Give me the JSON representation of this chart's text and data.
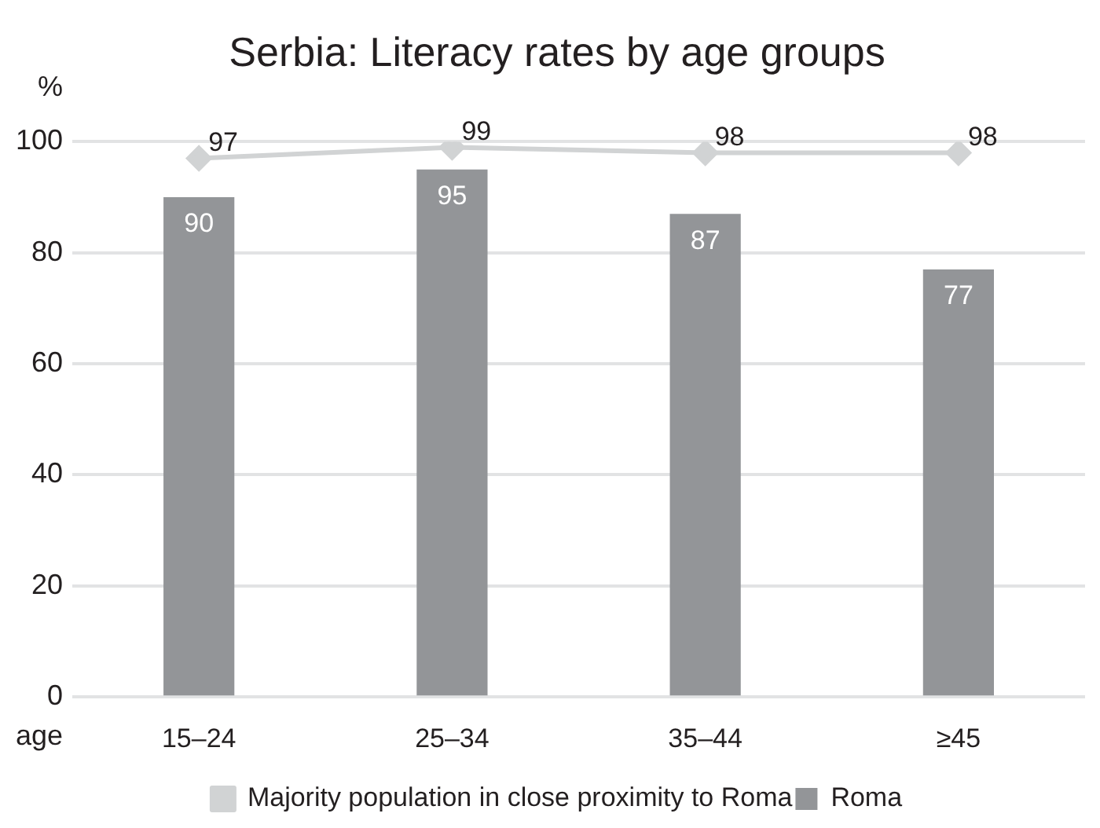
{
  "chart_data": {
    "type": "bar",
    "title": "Serbia: Literacy rates by age groups",
    "ylabel": "%",
    "xlabel": "age",
    "categories": [
      "15–24",
      "25–34",
      "35–44",
      "≥45"
    ],
    "series": [
      {
        "name": "Majority population in close proximity to Roma",
        "type": "line",
        "color": "#d1d3d4",
        "values": [
          97,
          99,
          98,
          98
        ]
      },
      {
        "name": "Roma",
        "color": "#939598",
        "values": [
          90,
          95,
          87,
          77
        ]
      }
    ],
    "ylim": [
      0,
      100
    ],
    "yticks": [
      0,
      20,
      40,
      60,
      80,
      100
    ],
    "grid": "y",
    "legend": "bottom",
    "marker": "diamond",
    "line_style": "solid",
    "data_labels": true
  }
}
